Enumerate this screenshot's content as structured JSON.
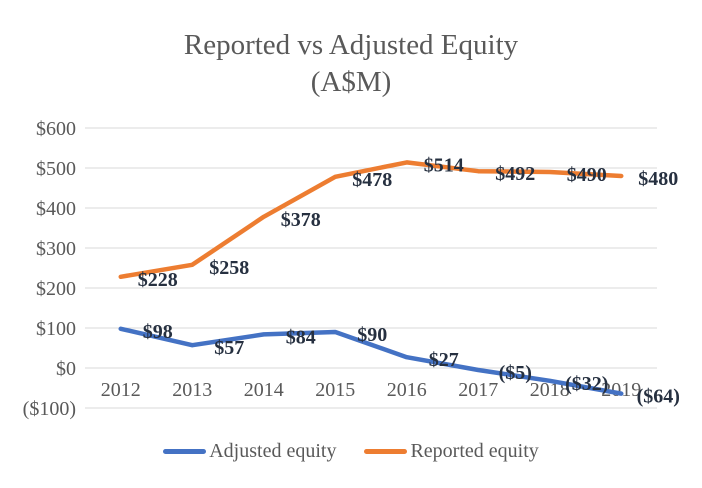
{
  "title": {
    "line1": "Reported vs Adjusted Equity",
    "line2": "(A$M)"
  },
  "chart_data": {
    "type": "line",
    "title": "Reported vs Adjusted Equity (A$M)",
    "categories": [
      "2012",
      "2013",
      "2014",
      "2015",
      "2016",
      "2017",
      "2018",
      "2019"
    ],
    "series": [
      {
        "name": "Adjusted equity",
        "color": "#4472C4",
        "values": [
          98,
          57,
          84,
          90,
          27,
          -5,
          -32,
          -64
        ],
        "labels": [
          "$98",
          "$57",
          "$84",
          "$90",
          "$27",
          "($5)",
          "($32)",
          "($64)"
        ]
      },
      {
        "name": "Reported equity",
        "color": "#ED7D31",
        "values": [
          228,
          258,
          378,
          478,
          514,
          492,
          490,
          480
        ],
        "labels": [
          "$228",
          "$258",
          "$378",
          "$478",
          "$514",
          "$492",
          "$490",
          "$480"
        ]
      }
    ],
    "yticks": [
      {
        "label": "$600",
        "value": 600
      },
      {
        "label": "$500",
        "value": 500
      },
      {
        "label": "$400",
        "value": 400
      },
      {
        "label": "$300",
        "value": 300
      },
      {
        "label": "$200",
        "value": 200
      },
      {
        "label": "$100",
        "value": 100
      },
      {
        "label": "$0",
        "value": 0
      },
      {
        "label": "($100)",
        "value": -100
      }
    ],
    "ylim": [
      -100,
      600
    ],
    "xlabel": "",
    "ylabel": "",
    "grid": true,
    "legend_position": "bottom",
    "colors": {
      "grid": "#D9D9D9",
      "axis_text": "#595959",
      "data_label": "#263040",
      "title_text": "#595959"
    }
  }
}
